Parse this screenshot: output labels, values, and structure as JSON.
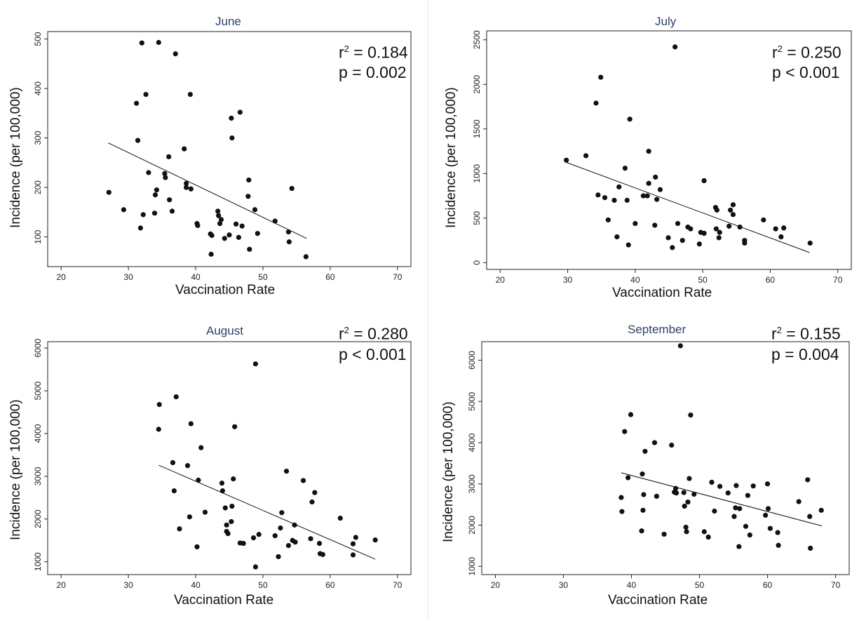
{
  "chart_data": [
    {
      "type": "scatter",
      "title": "June",
      "xlabel": "Vaccination Rate",
      "ylabel": "Incidence (per 100,000)",
      "xlim": [
        18,
        72
      ],
      "ylim": [
        40,
        515
      ],
      "xticks": [
        20,
        30,
        40,
        50,
        60,
        70
      ],
      "yticks": [
        100,
        200,
        300,
        400,
        500
      ],
      "r2_label": "r",
      "r2_value": " = 0.184",
      "p_label": "p = 0.002",
      "trendline": {
        "x": [
          27,
          56.5
        ],
        "y": [
          290,
          97
        ]
      },
      "points": [
        [
          27.1,
          190
        ],
        [
          29.3,
          155
        ],
        [
          31.2,
          370
        ],
        [
          31.4,
          295
        ],
        [
          31.8,
          118
        ],
        [
          32.0,
          492
        ],
        [
          32.2,
          145
        ],
        [
          32.6,
          388
        ],
        [
          33.0,
          230
        ],
        [
          33.9,
          148
        ],
        [
          34.0,
          185
        ],
        [
          34.2,
          195
        ],
        [
          34.5,
          493
        ],
        [
          35.4,
          228
        ],
        [
          35.5,
          220
        ],
        [
          36.0,
          262
        ],
        [
          36.1,
          175
        ],
        [
          36.5,
          152
        ],
        [
          37.0,
          470
        ],
        [
          38.3,
          278
        ],
        [
          38.6,
          208
        ],
        [
          38.6,
          200
        ],
        [
          39.2,
          388
        ],
        [
          39.3,
          197
        ],
        [
          40.2,
          127
        ],
        [
          40.3,
          123
        ],
        [
          42.2,
          106
        ],
        [
          42.3,
          65
        ],
        [
          42.4,
          103
        ],
        [
          43.3,
          152
        ],
        [
          43.4,
          143
        ],
        [
          43.6,
          127
        ],
        [
          43.8,
          135
        ],
        [
          44.3,
          97
        ],
        [
          45.0,
          104
        ],
        [
          45.3,
          340
        ],
        [
          45.4,
          300
        ],
        [
          46.0,
          126
        ],
        [
          46.4,
          99
        ],
        [
          46.6,
          352
        ],
        [
          46.9,
          122
        ],
        [
          47.8,
          182
        ],
        [
          47.9,
          215
        ],
        [
          48.0,
          75
        ],
        [
          48.8,
          155
        ],
        [
          49.2,
          107
        ],
        [
          51.8,
          132
        ],
        [
          53.8,
          110
        ],
        [
          53.9,
          90
        ],
        [
          54.3,
          198
        ],
        [
          56.4,
          60
        ]
      ]
    },
    {
      "type": "scatter",
      "title": "July",
      "xlabel": "Vaccination Rate",
      "ylabel": "Incidence (per 100,000)",
      "xlim": [
        18,
        72
      ],
      "ylim": [
        -75,
        2600
      ],
      "xticks": [
        20,
        30,
        40,
        50,
        60,
        70
      ],
      "yticks": [
        0,
        500,
        1000,
        1500,
        2000,
        2500
      ],
      "r2_label": "r",
      "r2_value": " = 0.250",
      "p_label": "p < 0.001",
      "trendline": {
        "x": [
          29.8,
          65.8
        ],
        "y": [
          1125,
          115
        ]
      },
      "points": [
        [
          29.8,
          1150
        ],
        [
          32.7,
          1200
        ],
        [
          34.2,
          1790
        ],
        [
          34.5,
          760
        ],
        [
          34.9,
          2080
        ],
        [
          35.5,
          730
        ],
        [
          36.0,
          480
        ],
        [
          36.9,
          700
        ],
        [
          37.3,
          290
        ],
        [
          37.6,
          850
        ],
        [
          38.5,
          1060
        ],
        [
          38.8,
          700
        ],
        [
          39.0,
          200
        ],
        [
          39.2,
          1610
        ],
        [
          40.0,
          440
        ],
        [
          41.2,
          750
        ],
        [
          41.8,
          750
        ],
        [
          42.0,
          890
        ],
        [
          42.0,
          1250
        ],
        [
          42.9,
          420
        ],
        [
          43.0,
          960
        ],
        [
          43.2,
          710
        ],
        [
          43.7,
          820
        ],
        [
          44.9,
          280
        ],
        [
          45.5,
          170
        ],
        [
          45.9,
          2420
        ],
        [
          46.3,
          440
        ],
        [
          47.0,
          250
        ],
        [
          47.8,
          400
        ],
        [
          48.2,
          380
        ],
        [
          49.5,
          210
        ],
        [
          49.7,
          340
        ],
        [
          50.2,
          920
        ],
        [
          50.2,
          330
        ],
        [
          51.9,
          620
        ],
        [
          52.0,
          380
        ],
        [
          52.1,
          590
        ],
        [
          52.4,
          280
        ],
        [
          52.5,
          340
        ],
        [
          53.9,
          410
        ],
        [
          54.1,
          590
        ],
        [
          54.5,
          650
        ],
        [
          54.5,
          540
        ],
        [
          55.5,
          400
        ],
        [
          56.2,
          250
        ],
        [
          56.2,
          220
        ],
        [
          59.0,
          480
        ],
        [
          60.8,
          380
        ],
        [
          61.6,
          290
        ],
        [
          62.0,
          390
        ],
        [
          65.9,
          220
        ]
      ]
    },
    {
      "type": "scatter",
      "title": "August",
      "xlabel": "Vaccination Rate",
      "ylabel": "Incidence (per 100,000)",
      "xlim": [
        18,
        72
      ],
      "ylim": [
        700,
        6150
      ],
      "xticks": [
        20,
        30,
        40,
        50,
        60,
        70
      ],
      "yticks": [
        1000,
        2000,
        3000,
        4000,
        5000,
        6000
      ],
      "r2_label": "r",
      "r2_value": " = 0.280",
      "p_label": "p < 0.001",
      "trendline": {
        "x": [
          34.5,
          66.7
        ],
        "y": [
          3260,
          1060
        ]
      },
      "points": [
        [
          34.5,
          4100
        ],
        [
          34.6,
          4680
        ],
        [
          36.6,
          3320
        ],
        [
          36.8,
          2660
        ],
        [
          37.1,
          4860
        ],
        [
          37.6,
          1770
        ],
        [
          38.8,
          3250
        ],
        [
          39.1,
          2050
        ],
        [
          39.3,
          4230
        ],
        [
          40.2,
          1350
        ],
        [
          40.4,
          2910
        ],
        [
          40.8,
          3670
        ],
        [
          41.4,
          2160
        ],
        [
          43.9,
          2840
        ],
        [
          44.0,
          2660
        ],
        [
          44.4,
          2260
        ],
        [
          44.6,
          1710
        ],
        [
          44.6,
          1860
        ],
        [
          44.8,
          1660
        ],
        [
          45.3,
          1940
        ],
        [
          45.4,
          2300
        ],
        [
          45.6,
          2940
        ],
        [
          45.8,
          4160
        ],
        [
          46.6,
          1440
        ],
        [
          47.1,
          1430
        ],
        [
          48.6,
          1560
        ],
        [
          48.9,
          5630
        ],
        [
          48.9,
          880
        ],
        [
          49.4,
          1640
        ],
        [
          51.8,
          1610
        ],
        [
          52.3,
          1120
        ],
        [
          52.6,
          1790
        ],
        [
          52.8,
          2150
        ],
        [
          53.5,
          3120
        ],
        [
          53.8,
          1380
        ],
        [
          54.4,
          1500
        ],
        [
          54.7,
          1860
        ],
        [
          54.8,
          1460
        ],
        [
          56.0,
          2900
        ],
        [
          57.1,
          1540
        ],
        [
          57.3,
          2400
        ],
        [
          57.7,
          2620
        ],
        [
          58.4,
          1430
        ],
        [
          58.5,
          1190
        ],
        [
          58.9,
          1170
        ],
        [
          61.5,
          2020
        ],
        [
          63.4,
          1420
        ],
        [
          63.4,
          1160
        ],
        [
          63.8,
          1570
        ],
        [
          66.7,
          1510
        ]
      ]
    },
    {
      "type": "scatter",
      "title": "September",
      "xlabel": "Vaccination Rate",
      "ylabel": "Incidence (per 100,000)",
      "xlim": [
        18,
        72
      ],
      "ylim": [
        800,
        6450
      ],
      "xticks": [
        20,
        30,
        40,
        50,
        60,
        70
      ],
      "yticks": [
        1000,
        2000,
        3000,
        4000,
        5000,
        6000
      ],
      "r2_label": "r",
      "r2_value": " = 0.155",
      "p_label": "p = 0.004",
      "trendline": {
        "x": [
          38.5,
          68
        ],
        "y": [
          3270,
          1980
        ]
      },
      "points": [
        [
          38.5,
          2670
        ],
        [
          38.6,
          2330
        ],
        [
          39.0,
          4270
        ],
        [
          39.5,
          3150
        ],
        [
          39.9,
          4680
        ],
        [
          41.5,
          1860
        ],
        [
          41.6,
          3240
        ],
        [
          41.7,
          2360
        ],
        [
          41.8,
          2740
        ],
        [
          42.0,
          3790
        ],
        [
          43.4,
          4000
        ],
        [
          43.7,
          2700
        ],
        [
          44.8,
          1780
        ],
        [
          45.9,
          3940
        ],
        [
          46.3,
          2800
        ],
        [
          46.5,
          2890
        ],
        [
          46.6,
          2780
        ],
        [
          47.2,
          6350
        ],
        [
          47.7,
          2790
        ],
        [
          47.8,
          2460
        ],
        [
          48.0,
          1950
        ],
        [
          48.1,
          1840
        ],
        [
          48.3,
          2560
        ],
        [
          48.5,
          3130
        ],
        [
          48.7,
          4670
        ],
        [
          49.2,
          2750
        ],
        [
          50.7,
          1840
        ],
        [
          51.3,
          1710
        ],
        [
          51.8,
          3040
        ],
        [
          52.2,
          2340
        ],
        [
          53.0,
          2940
        ],
        [
          54.2,
          2780
        ],
        [
          55.1,
          2210
        ],
        [
          55.3,
          2420
        ],
        [
          55.4,
          2960
        ],
        [
          55.8,
          1480
        ],
        [
          55.9,
          2400
        ],
        [
          56.8,
          1970
        ],
        [
          57.1,
          2720
        ],
        [
          57.4,
          1760
        ],
        [
          57.9,
          2950
        ],
        [
          59.7,
          2240
        ],
        [
          60.0,
          3000
        ],
        [
          60.1,
          2400
        ],
        [
          60.4,
          1920
        ],
        [
          61.5,
          1820
        ],
        [
          61.6,
          1510
        ],
        [
          64.6,
          2570
        ],
        [
          65.9,
          3100
        ],
        [
          66.2,
          2210
        ],
        [
          66.3,
          1440
        ],
        [
          67.9,
          2360
        ]
      ]
    }
  ]
}
